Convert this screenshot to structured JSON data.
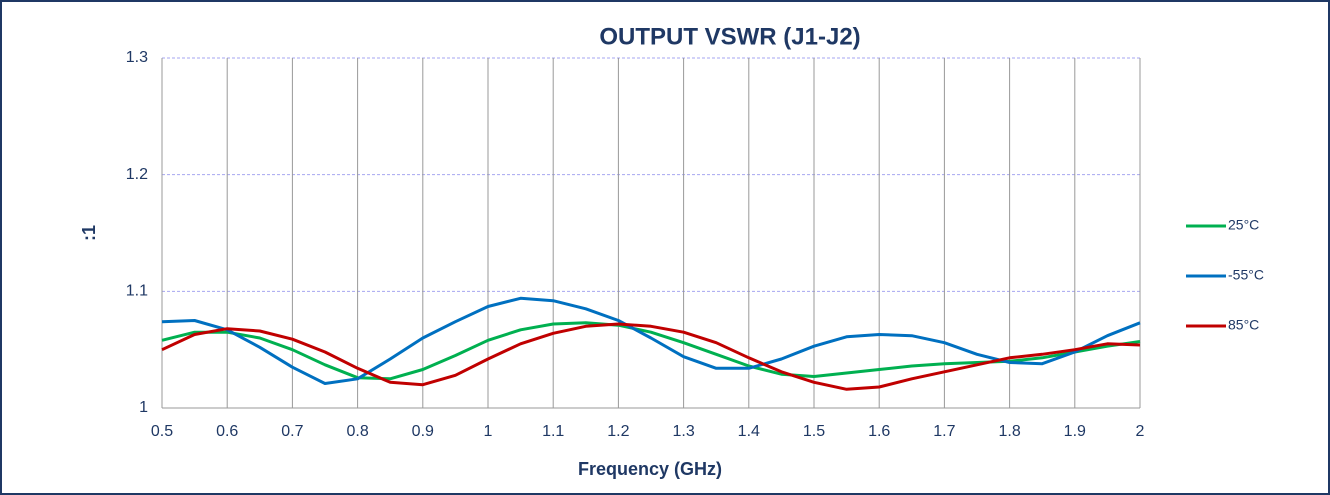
{
  "chart_data": {
    "type": "line",
    "title": "OUTPUT VSWR (J1-J2)",
    "x_label": "Frequency (GHz)",
    "y_label": ":1",
    "x": [
      0.5,
      0.55,
      0.6,
      0.65,
      0.7,
      0.75,
      0.8,
      0.85,
      0.9,
      0.95,
      1.0,
      1.05,
      1.1,
      1.15,
      1.2,
      1.25,
      1.3,
      1.35,
      1.4,
      1.45,
      1.5,
      1.55,
      1.6,
      1.65,
      1.7,
      1.75,
      1.8,
      1.85,
      1.9,
      1.95,
      2.0
    ],
    "series": [
      {
        "name": "25°C",
        "color": "#00b050",
        "values": [
          1.058,
          1.065,
          1.065,
          1.06,
          1.05,
          1.037,
          1.026,
          1.025,
          1.033,
          1.045,
          1.058,
          1.067,
          1.072,
          1.073,
          1.071,
          1.065,
          1.056,
          1.046,
          1.036,
          1.029,
          1.027,
          1.03,
          1.033,
          1.036,
          1.038,
          1.039,
          1.04,
          1.043,
          1.048,
          1.053,
          1.057
        ]
      },
      {
        "name": "-55°C",
        "color": "#0070c0",
        "values": [
          1.074,
          1.075,
          1.067,
          1.052,
          1.035,
          1.021,
          1.025,
          1.042,
          1.06,
          1.074,
          1.087,
          1.094,
          1.092,
          1.085,
          1.075,
          1.06,
          1.044,
          1.034,
          1.034,
          1.042,
          1.053,
          1.061,
          1.063,
          1.062,
          1.056,
          1.046,
          1.039,
          1.038,
          1.048,
          1.062,
          1.073
        ]
      },
      {
        "name": "85°C",
        "color": "#c00000",
        "values": [
          1.05,
          1.063,
          1.068,
          1.066,
          1.059,
          1.048,
          1.034,
          1.022,
          1.02,
          1.028,
          1.042,
          1.055,
          1.064,
          1.07,
          1.072,
          1.07,
          1.065,
          1.056,
          1.043,
          1.031,
          1.022,
          1.016,
          1.018,
          1.025,
          1.031,
          1.037,
          1.043,
          1.046,
          1.05,
          1.055,
          1.054
        ]
      }
    ],
    "xlim": [
      0.5,
      2
    ],
    "xticks": [
      0.5,
      0.6,
      0.7,
      0.8,
      0.9,
      1,
      1.1,
      1.2,
      1.3,
      1.4,
      1.5,
      1.6,
      1.7,
      1.8,
      1.9,
      2
    ],
    "ylim": [
      1,
      1.3
    ],
    "yticks": [
      1,
      1.1,
      1.2,
      1.3
    ],
    "grid": true,
    "legend": "right"
  }
}
